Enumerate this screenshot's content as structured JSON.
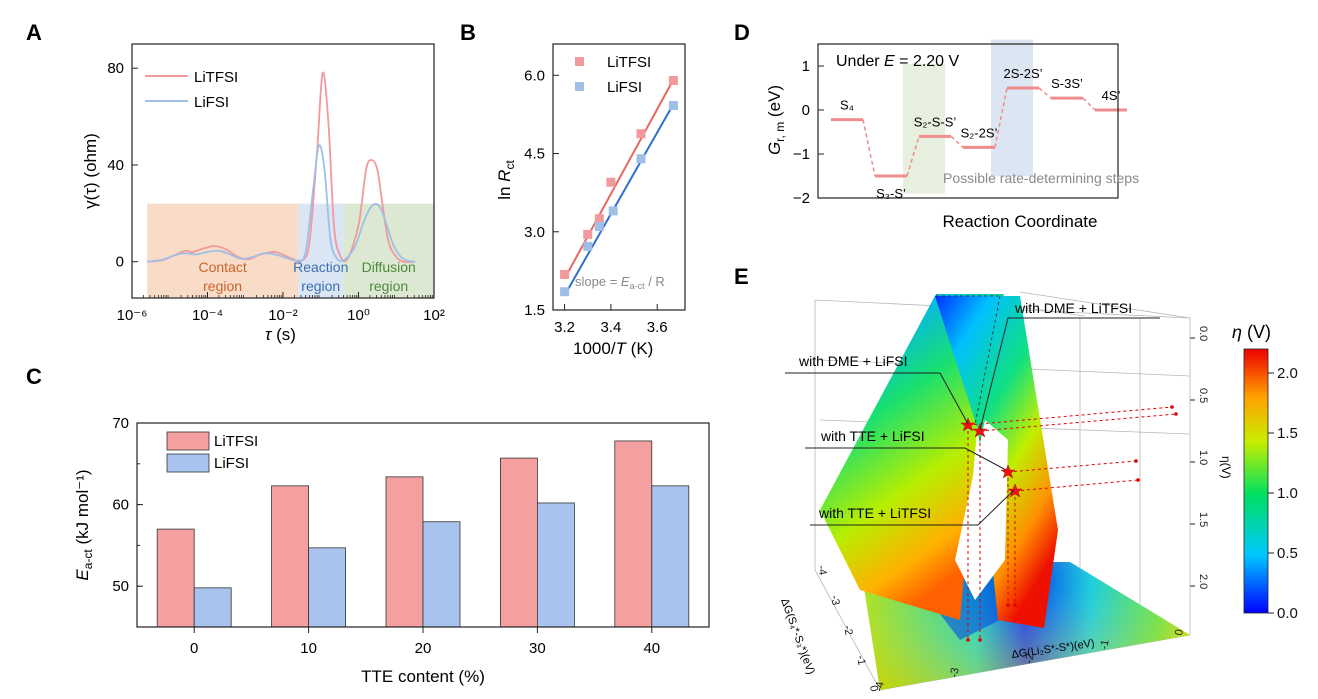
{
  "panel_letters": [
    "A",
    "B",
    "C",
    "D",
    "E"
  ],
  "chart_data": [
    {
      "panel": "A",
      "type": "line",
      "xscale": "log",
      "xlabel_prefix": "τ",
      "xlabel_unit": "(s)",
      "ylabel": "γ(τ) (ohm)",
      "xtick_labels": [
        "10⁻⁶",
        "10⁻⁴",
        "10⁻²",
        "10⁰",
        "10²"
      ],
      "ytick_labels": [
        "0",
        "40",
        "80"
      ],
      "xlim_log10": [
        -6,
        2
      ],
      "ylim": [
        -15,
        90
      ],
      "regions": [
        {
          "label_line1": "Contact",
          "label_line2": "region",
          "from_log10": -5.6,
          "to_log10": -1.6,
          "fill": "#f9dcc8",
          "text_color": "#c8642a"
        },
        {
          "label_line1": "Reaction",
          "label_line2": "region",
          "from_log10": -1.6,
          "to_log10": -0.4,
          "fill": "#dbe6f4",
          "text_color": "#3d6fb0"
        },
        {
          "label_line1": "Diffusion",
          "label_line2": "region",
          "from_log10": -0.4,
          "to_log10": 2.0,
          "fill": "#dde8d2",
          "text_color": "#4c8a3c"
        }
      ],
      "region_ymax": 24,
      "series": [
        {
          "name": "LiTFSI",
          "color": "#f2999c",
          "x_log10": [
            -5.6,
            -5.2,
            -4.9,
            -4.6,
            -4.4,
            -4.1,
            -3.8,
            -3.5,
            -3.2,
            -2.9,
            -2.6,
            -2.2,
            -1.8,
            -1.5,
            -1.3,
            -1.1,
            -0.95,
            -0.8,
            -0.65,
            -0.5,
            -0.3,
            0.0,
            0.2,
            0.35,
            0.5,
            0.65,
            0.8,
            1.0,
            1.2,
            1.5
          ],
          "y": [
            0,
            0.6,
            2.5,
            4.5,
            4.0,
            5.5,
            6.5,
            5.0,
            2.0,
            1.0,
            3.0,
            4.0,
            1.5,
            0.5,
            8,
            45,
            78,
            58,
            15,
            3,
            1,
            15,
            38,
            42,
            38,
            22,
            8,
            2,
            0,
            0
          ]
        },
        {
          "name": "LiFSI",
          "color": "#9fbfe7",
          "x_log10": [
            -5.6,
            -5.2,
            -4.9,
            -4.6,
            -4.3,
            -4.0,
            -3.7,
            -3.4,
            -3.1,
            -2.8,
            -2.5,
            -2.2,
            -1.9,
            -1.6,
            -1.4,
            -1.2,
            -1.05,
            -0.9,
            -0.75,
            -0.6,
            -0.4,
            -0.1,
            0.15,
            0.35,
            0.55,
            0.75,
            0.95,
            1.2,
            1.5
          ],
          "y": [
            0,
            0.8,
            2.5,
            3.5,
            3.0,
            4.0,
            4.5,
            3.0,
            1.2,
            2.0,
            3.5,
            3.0,
            1.5,
            0.5,
            4,
            30,
            48,
            38,
            10,
            2,
            0.5,
            6,
            17,
            23,
            23,
            15,
            6,
            1,
            0
          ]
        }
      ]
    },
    {
      "panel": "B",
      "type": "scatter",
      "xlabel_prefix": "1000/",
      "xlabel_var": "T",
      "xlabel_unit": "(K)",
      "ylabel_prefix": "ln",
      "ylabel_var": "R",
      "ylabel_sub": "ct",
      "xlim": [
        3.15,
        3.72
      ],
      "ylim": [
        1.5,
        6.6
      ],
      "xtick_labels": [
        "3.2",
        "3.4",
        "3.6"
      ],
      "ytick_labels": [
        "1.5",
        "3.0",
        "4.5",
        "6.0"
      ],
      "annotation_prefix": "slope = ",
      "annotation_var": "E",
      "annotation_sub": "a-ct",
      "annotation_suffix": " / R",
      "series": [
        {
          "name": "LiTFSI",
          "color": "#f2999c",
          "fit_color": "#e8675f",
          "x": [
            3.2,
            3.3,
            3.35,
            3.4,
            3.53,
            3.67
          ],
          "y": [
            2.18,
            2.95,
            3.25,
            3.95,
            4.88,
            5.9
          ],
          "fit": [
            [
              3.2,
              2.1
            ],
            [
              3.67,
              5.92
            ]
          ]
        },
        {
          "name": "LiFSI",
          "color": "#9fbfe7",
          "fit_color": "#2f6fcf",
          "x": [
            3.2,
            3.3,
            3.35,
            3.41,
            3.53,
            3.67
          ],
          "y": [
            1.85,
            2.72,
            3.1,
            3.4,
            4.4,
            5.42
          ],
          "fit": [
            [
              3.2,
              1.78
            ],
            [
              3.67,
              5.45
            ]
          ]
        }
      ]
    },
    {
      "panel": "C",
      "type": "bar",
      "xlabel": "TTE content (%)",
      "ylabel_var": "E",
      "ylabel_sub": "a-ct",
      "ylabel_unit": "(kJ mol⁻¹)",
      "categories": [
        "0",
        "10",
        "20",
        "30",
        "40"
      ],
      "ylim": [
        45,
        70
      ],
      "ytick_labels": [
        "50",
        "60",
        "70"
      ],
      "series": [
        {
          "name": "LiTFSI",
          "color": "#f5a0a0",
          "values": [
            57.0,
            62.3,
            63.4,
            65.7,
            67.8
          ]
        },
        {
          "name": "LiFSI",
          "color": "#a8c4ee",
          "values": [
            49.8,
            54.7,
            57.9,
            60.2,
            62.3
          ]
        }
      ]
    },
    {
      "panel": "D",
      "type": "line",
      "title_prefix": "Under ",
      "title_var": "E",
      "title_suffix": " = 2.20 V",
      "xlabel": "Reaction Coordinate",
      "ylabel_var": "G",
      "ylabel_sub": "r, m",
      "ylabel_unit": "(eV)",
      "ylim": [
        -2,
        1.5
      ],
      "ytick_labels": [
        "−2",
        "−1",
        "0",
        "1"
      ],
      "note": "Possible rate-determining steps",
      "highlight_green_steps": [
        2,
        3
      ],
      "highlight_blue_steps": [
        4,
        5
      ],
      "color": "#f08c8c",
      "levels": [
        {
          "label": "S₄",
          "energy": -0.22
        },
        {
          "label": "S₃-S’",
          "energy": -1.5
        },
        {
          "label": "S₂-S-S’",
          "energy": -0.6
        },
        {
          "label": "S₂-2S’",
          "energy": -0.85
        },
        {
          "label": "2S-2S’",
          "energy": 0.5
        },
        {
          "label": "S-3S’",
          "energy": 0.27
        },
        {
          "label": "4S’",
          "energy": 0.0
        }
      ]
    },
    {
      "panel": "E",
      "type": "surface3d",
      "colorbar_label_var": "η",
      "colorbar_label_unit": "(V)",
      "colorbar_ticks": [
        "0.0",
        "0.5",
        "1.0",
        "1.5",
        "2.0"
      ],
      "colorbar_range": [
        0,
        2.2
      ],
      "z_tick_labels": [
        "0.0",
        "0.5",
        "1.0",
        "1.5",
        "2.0"
      ],
      "z_axis_label": "η(V)",
      "y_tick_labels": [
        "-4",
        "-3",
        "-2",
        "-1",
        "0"
      ],
      "y_axis_label": "ΔG(S₄*-S₃*)(eV)",
      "x_tick_labels": [
        "-4",
        "-3",
        "-2",
        "-1",
        "0"
      ],
      "x_axis_label": "ΔG(Li₂S*-S*)(eV)",
      "annotations": [
        "with DME + LiTFSI",
        "with DME + LiFSI",
        "with TTE + LiFSI",
        "with TTE + LiTFSI"
      ]
    }
  ]
}
